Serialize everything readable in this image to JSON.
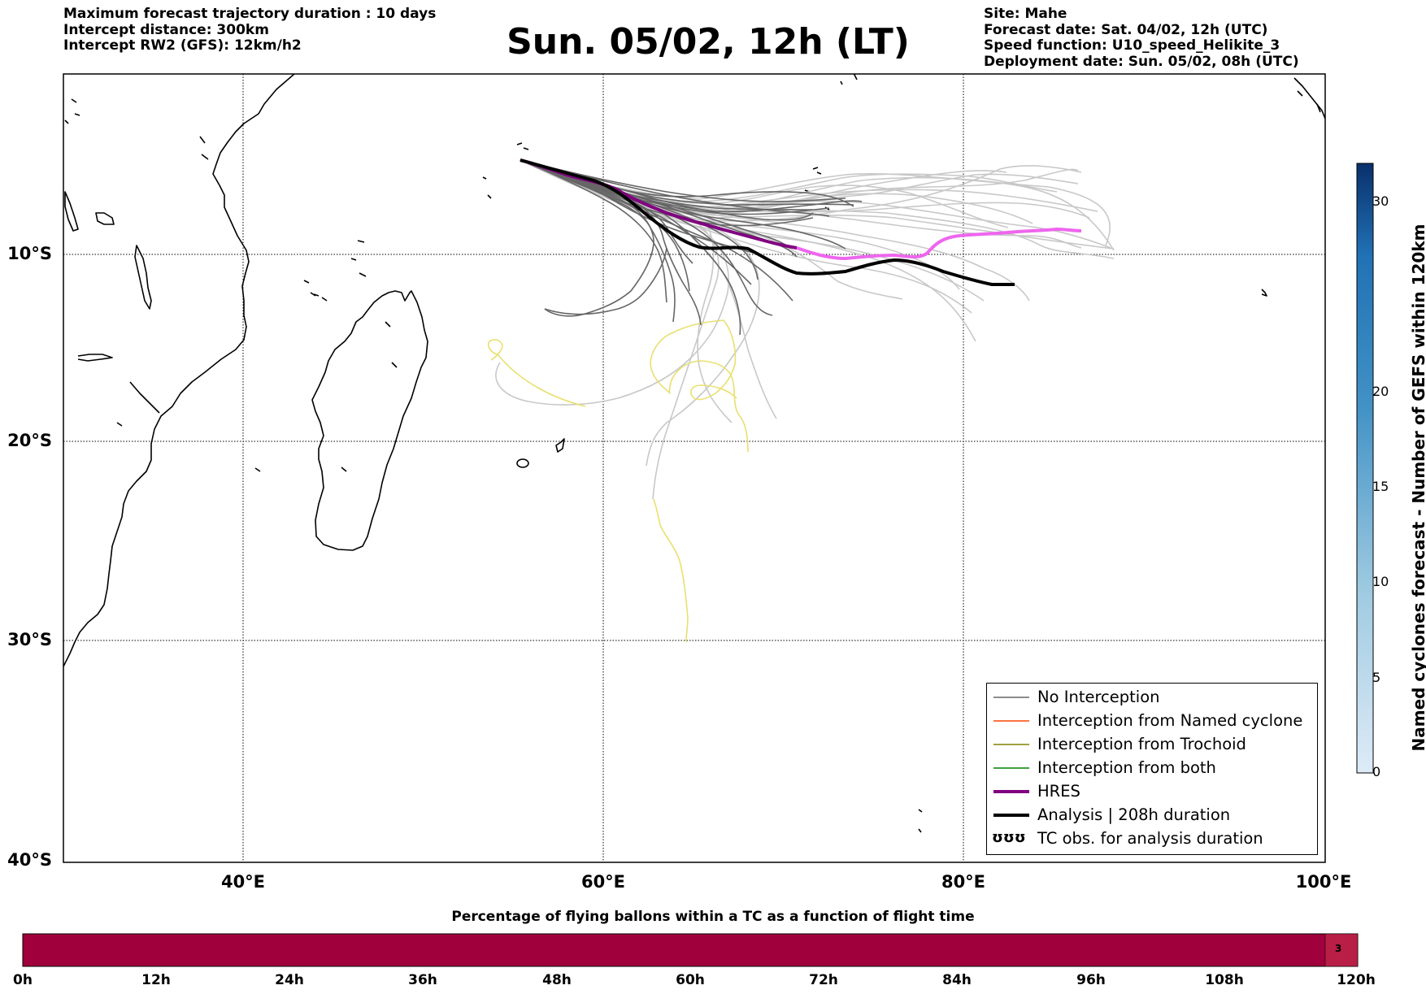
{
  "header_left": [
    "Maximum forecast trajectory duration : 10 days",
    "Intercept distance: 300km",
    "Intercept RW2 (GFS):  12km/h2"
  ],
  "title": "Sun. 05/02, 12h (LT)",
  "header_right": [
    "Site: Mahe",
    "Forecast date: Sat. 04/02, 12h (UTC)",
    "Speed function: U10_speed_Helikite_3",
    "Deployment date: Sun. 05/02, 08h (UTC)"
  ],
  "map": {
    "lat_labels": [
      "10°S",
      "20°S",
      "30°S",
      "40°S"
    ],
    "lon_labels": [
      "40°E",
      "60°E",
      "80°E",
      "100°E"
    ],
    "colors": {
      "no_interception": "#666666",
      "named_cyclone": "#ff4500",
      "trochoid": "#808000",
      "both": "#008000",
      "hres": "#800080",
      "analysis": "#000000",
      "late_members": "#c8c8c8",
      "yellow_tracks": "#e8e070",
      "hres_extension": "#ee66ee"
    }
  },
  "legend": {
    "items": [
      "No Interception",
      "Interception from Named cyclone",
      "Interception from Trochoid",
      "Interception from both",
      "HRES",
      "Analysis | 208h duration",
      "TC obs. for analysis duration"
    ],
    "tc_symbol": "ʊʊʊ"
  },
  "colorbar": {
    "title": "Named cyclones forecast - Number of GEFS within 120km",
    "ticks": [
      "0",
      "5",
      "10",
      "15",
      "20",
      "30"
    ],
    "color_low": "#deebf7",
    "color_high": "#08306b"
  },
  "percentage_bar": {
    "title": "Percentage of flying ballons within a TC as a function of flight time",
    "ticks": [
      "0h",
      "12h",
      "24h",
      "36h",
      "48h",
      "60h",
      "72h",
      "84h",
      "96h",
      "108h",
      "120h"
    ],
    "end_value": "3",
    "bar_color": "#a0003c",
    "end_color": "#b81e46"
  }
}
